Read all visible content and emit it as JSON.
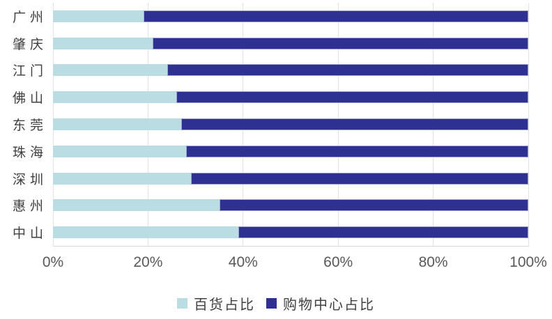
{
  "chart_data": {
    "type": "bar",
    "orientation": "horizontal",
    "stacked": true,
    "title": "",
    "xlabel": "",
    "ylabel": "",
    "categories": [
      "广州",
      "肇庆",
      "江门",
      "佛山",
      "东莞",
      "珠海",
      "深圳",
      "惠州",
      "中山"
    ],
    "series": [
      {
        "name": "百货占比",
        "color": "#b9dde2",
        "values": [
          19,
          21,
          24,
          26,
          27,
          28,
          29,
          35,
          39
        ]
      },
      {
        "name": "购物中心占比",
        "color": "#2f3192",
        "values": [
          81,
          79,
          76,
          74,
          73,
          72,
          71,
          65,
          61
        ]
      }
    ],
    "x_axis": {
      "min": 0,
      "max": 100,
      "ticks": [
        "0%",
        "20%",
        "40%",
        "60%",
        "80%",
        "100%"
      ],
      "tick_values": [
        0,
        20,
        40,
        60,
        80,
        100
      ]
    },
    "legend": {
      "position": "bottom",
      "entries": [
        "百货占比",
        "购物中心占比"
      ]
    },
    "grid": true,
    "colors": {
      "gridline": "#e2e2e2",
      "axis_line": "#d9d9d9",
      "tick_label": "#595959",
      "category_label": "#3f3f3f",
      "legend_label": "#404040",
      "dark_segment_border": "#9fa1d1"
    }
  }
}
